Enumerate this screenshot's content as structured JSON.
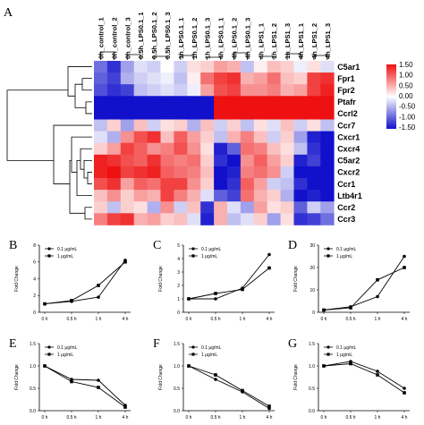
{
  "heatmap": {
    "letter": "A",
    "columns": [
      "0h_control_1",
      "0h_control_2",
      "0h_control_3",
      "0.5h_LPS0.1_1",
      "0.5h_LPS0.1_2",
      "0.5h_LPS0.1_3",
      "1h_LPS0.1_1",
      "1h_LPS0.1_2",
      "1h_LPS0.1_3",
      "4h_LPS0.1_1",
      "4h_LPS0.1_2",
      "4h_LPS0.1_3",
      "4h_LPS1_1",
      "1h_LPS1_2",
      "1h_LPS1_3",
      "4h_LPS1_1",
      "4h_LPS1_2",
      "4h_LPS1_3"
    ],
    "rows": [
      "C5ar1",
      "Fpr1",
      "Fpr2",
      "Ptafr",
      "Ccrl2",
      "Ccr7",
      "Cxcr1",
      "Cxcr4",
      "C5ar2",
      "Cxcr2",
      "Ccr1",
      "Ltb4r1",
      "Ccr2",
      "Ccr3"
    ],
    "values": [
      [
        -0.9,
        -1.3,
        -0.6,
        -0.2,
        -0.3,
        0.0,
        -0.3,
        0.2,
        0.3,
        0.6,
        0.5,
        -0.4,
        0.1,
        0.4,
        0.3,
        -0.1,
        0.2,
        -0.2
      ],
      [
        -1.0,
        -1.2,
        -0.5,
        -0.3,
        -0.2,
        -0.1,
        -0.4,
        0.1,
        0.9,
        1.2,
        1.3,
        0.5,
        0.6,
        0.9,
        0.4,
        0.3,
        1.2,
        1.3
      ],
      [
        -1.1,
        -1.3,
        -1.2,
        -0.4,
        -0.3,
        -0.2,
        -0.3,
        -0.1,
        0.6,
        1.1,
        1.2,
        0.7,
        0.7,
        0.8,
        0.5,
        0.6,
        1.2,
        1.4
      ],
      [
        -1.5,
        -1.5,
        -1.5,
        -1.5,
        -1.5,
        -1.5,
        -1.5,
        -1.5,
        -1.5,
        1.5,
        1.5,
        1.5,
        1.5,
        1.5,
        1.5,
        1.5,
        1.5,
        1.5
      ],
      [
        -1.5,
        -1.5,
        -1.5,
        -1.5,
        -1.5,
        -1.5,
        -1.5,
        -1.5,
        -1.5,
        1.5,
        1.5,
        1.5,
        1.5,
        1.5,
        1.5,
        1.5,
        1.5,
        1.5
      ],
      [
        -0.4,
        0.3,
        -0.6,
        0.4,
        -0.3,
        0.2,
        0.3,
        -0.5,
        0.4,
        -0.3,
        0.3,
        -0.4,
        0.2,
        -0.2,
        0.4,
        -0.3,
        0.2,
        -0.4
      ],
      [
        -0.2,
        -0.5,
        0.7,
        1.1,
        1.3,
        0.4,
        1.0,
        0.6,
        0.3,
        -0.4,
        0.5,
        0.8,
        0.4,
        -0.3,
        0.3,
        -0.6,
        -1.4,
        -1.5
      ],
      [
        0.3,
        0.6,
        1.2,
        1.0,
        0.7,
        0.8,
        1.1,
        0.7,
        0.2,
        -1.4,
        -1.0,
        0.9,
        0.8,
        0.4,
        0.2,
        -0.4,
        -1.3,
        -1.5
      ],
      [
        1.4,
        1.3,
        1.1,
        1.0,
        1.3,
        0.9,
        0.8,
        0.9,
        0.3,
        -1.3,
        -1.5,
        0.7,
        1.0,
        0.6,
        0.3,
        -1.4,
        -1.2,
        -1.5
      ],
      [
        1.4,
        1.5,
        1.2,
        1.3,
        1.4,
        1.0,
        0.9,
        0.8,
        0.4,
        -1.5,
        -1.4,
        0.8,
        0.9,
        0.7,
        -0.3,
        -1.5,
        -1.5,
        -1.5
      ],
      [
        1.1,
        1.3,
        0.6,
        1.0,
        0.9,
        1.2,
        1.2,
        0.7,
        0.3,
        -1.5,
        -1.3,
        1.0,
        0.6,
        -0.3,
        -0.4,
        -1.3,
        -1.5,
        -1.5
      ],
      [
        0.4,
        0.7,
        0.3,
        0.6,
        0.5,
        1.2,
        0.8,
        0.5,
        -0.2,
        -1.0,
        -1.2,
        0.9,
        0.5,
        0.3,
        -0.5,
        -1.5,
        -1.4,
        -1.5
      ],
      [
        0.3,
        -0.4,
        0.3,
        0.2,
        -0.5,
        0.7,
        -0.3,
        0.4,
        -1.3,
        0.5,
        -0.2,
        -0.6,
        0.6,
        0.2,
        0.3,
        -1.0,
        -0.3,
        -0.6
      ],
      [
        0.8,
        1.2,
        1.3,
        0.5,
        0.6,
        0.3,
        0.4,
        -0.2,
        -1.4,
        0.5,
        -0.4,
        -0.2,
        0.3,
        -0.6,
        0.2,
        -1.3,
        -1.2,
        -0.9
      ]
    ],
    "colorbar": {
      "labels": [
        "1.50",
        "1.00",
        "0.50",
        "0.00",
        "-0.50",
        "-1.00",
        "-1.50"
      ],
      "colors": {
        "high": "#ee1111",
        "mid": "#ffffff",
        "low": "#1111cc"
      }
    }
  },
  "legend": {
    "low": "0.1 μg/mL",
    "high": "1 μg/mL"
  },
  "chart_data": [
    {
      "type": "line",
      "letter": "B",
      "categories": [
        "0 h",
        "0.5 h",
        "1 h",
        "4 h"
      ],
      "ylabel": "Fold Change",
      "yticks": [
        0,
        2,
        4,
        6,
        8
      ],
      "ylim": [
        0,
        8
      ],
      "series": [
        {
          "name": "0.1 μg/mL",
          "values": [
            1.0,
            1.3,
            1.8,
            6.2
          ]
        },
        {
          "name": "1 μg/mL",
          "values": [
            1.0,
            1.4,
            3.2,
            6.0
          ]
        }
      ]
    },
    {
      "type": "line",
      "letter": "C",
      "categories": [
        "0 h",
        "0.5 h",
        "1 h",
        "4 h"
      ],
      "ylabel": "Fold Change",
      "yticks": [
        0,
        1,
        2,
        3,
        4,
        5
      ],
      "ylim": [
        0,
        5
      ],
      "series": [
        {
          "name": "0.1 μg/mL",
          "values": [
            1.0,
            1.0,
            1.8,
            4.3
          ]
        },
        {
          "name": "1 μg/mL",
          "values": [
            1.0,
            1.4,
            1.7,
            3.3
          ]
        }
      ]
    },
    {
      "type": "line",
      "letter": "D",
      "categories": [
        "0 h",
        "0.5 h",
        "1 h",
        "4 h"
      ],
      "ylabel": "Fold Change",
      "yticks": [
        0,
        10,
        20,
        30
      ],
      "ylim": [
        0,
        30
      ],
      "series": [
        {
          "name": "0.1 μg/mL",
          "values": [
            1.0,
            2.5,
            7.0,
            25.0
          ]
        },
        {
          "name": "1 μg/mL",
          "values": [
            1.0,
            2.0,
            14.5,
            20.0
          ]
        }
      ]
    },
    {
      "type": "line",
      "letter": "E",
      "categories": [
        "0 h",
        "0.5 h",
        "1 h",
        "4 h"
      ],
      "ylabel": "Fold Change",
      "yticks": [
        0.0,
        0.5,
        1.0,
        1.5
      ],
      "ylim": [
        0,
        1.5
      ],
      "series": [
        {
          "name": "0.1 μg/mL",
          "values": [
            1.0,
            0.7,
            0.68,
            0.12
          ]
        },
        {
          "name": "1 μg/mL",
          "values": [
            1.0,
            0.65,
            0.52,
            0.08
          ]
        }
      ]
    },
    {
      "type": "line",
      "letter": "F",
      "categories": [
        "0 h",
        "0.5 h",
        "1 h",
        "4 h"
      ],
      "ylabel": "Fold Change",
      "yticks": [
        0.0,
        0.5,
        1.0,
        1.5
      ],
      "ylim": [
        0,
        1.5
      ],
      "series": [
        {
          "name": "0.1 μg/mL",
          "values": [
            1.0,
            0.7,
            0.42,
            0.05
          ]
        },
        {
          "name": "1 μg/mL",
          "values": [
            1.0,
            0.8,
            0.45,
            0.1
          ]
        }
      ]
    },
    {
      "type": "line",
      "letter": "G",
      "categories": [
        "0 h",
        "0.5 h",
        "1 h",
        "4 h"
      ],
      "ylabel": "Fold Change",
      "yticks": [
        0.0,
        0.5,
        1.0,
        1.5
      ],
      "ylim": [
        0,
        1.5
      ],
      "series": [
        {
          "name": "0.1 μg/mL",
          "values": [
            1.0,
            1.1,
            0.88,
            0.5
          ]
        },
        {
          "name": "1 μg/mL",
          "values": [
            1.0,
            1.05,
            0.8,
            0.4
          ]
        }
      ]
    }
  ]
}
